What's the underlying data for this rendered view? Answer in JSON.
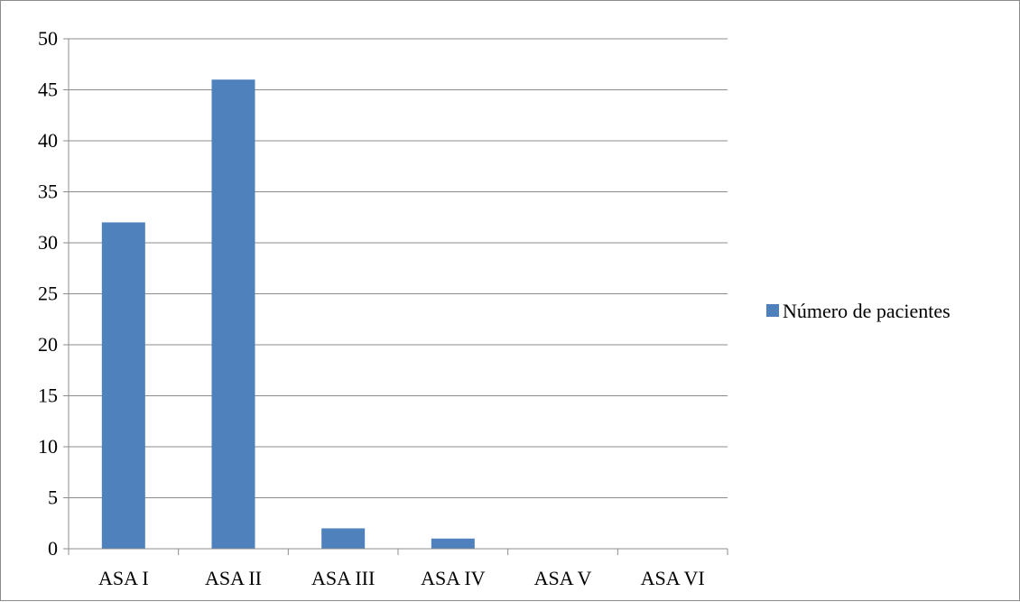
{
  "chart_data": {
    "type": "bar",
    "categories": [
      "ASA I",
      "ASA II",
      "ASA III",
      "ASA IV",
      "ASA V",
      "ASA VI"
    ],
    "series": [
      {
        "name": "Número de pacientes",
        "values": [
          32,
          46,
          2,
          1,
          0,
          0
        ],
        "color": "#4f81bd"
      }
    ],
    "title": "",
    "xlabel": "",
    "ylabel": "",
    "ylim": [
      0,
      50
    ],
    "yticks": [
      0,
      5,
      10,
      15,
      20,
      25,
      30,
      35,
      40,
      45,
      50
    ],
    "grid": true,
    "legend_position": "right"
  }
}
